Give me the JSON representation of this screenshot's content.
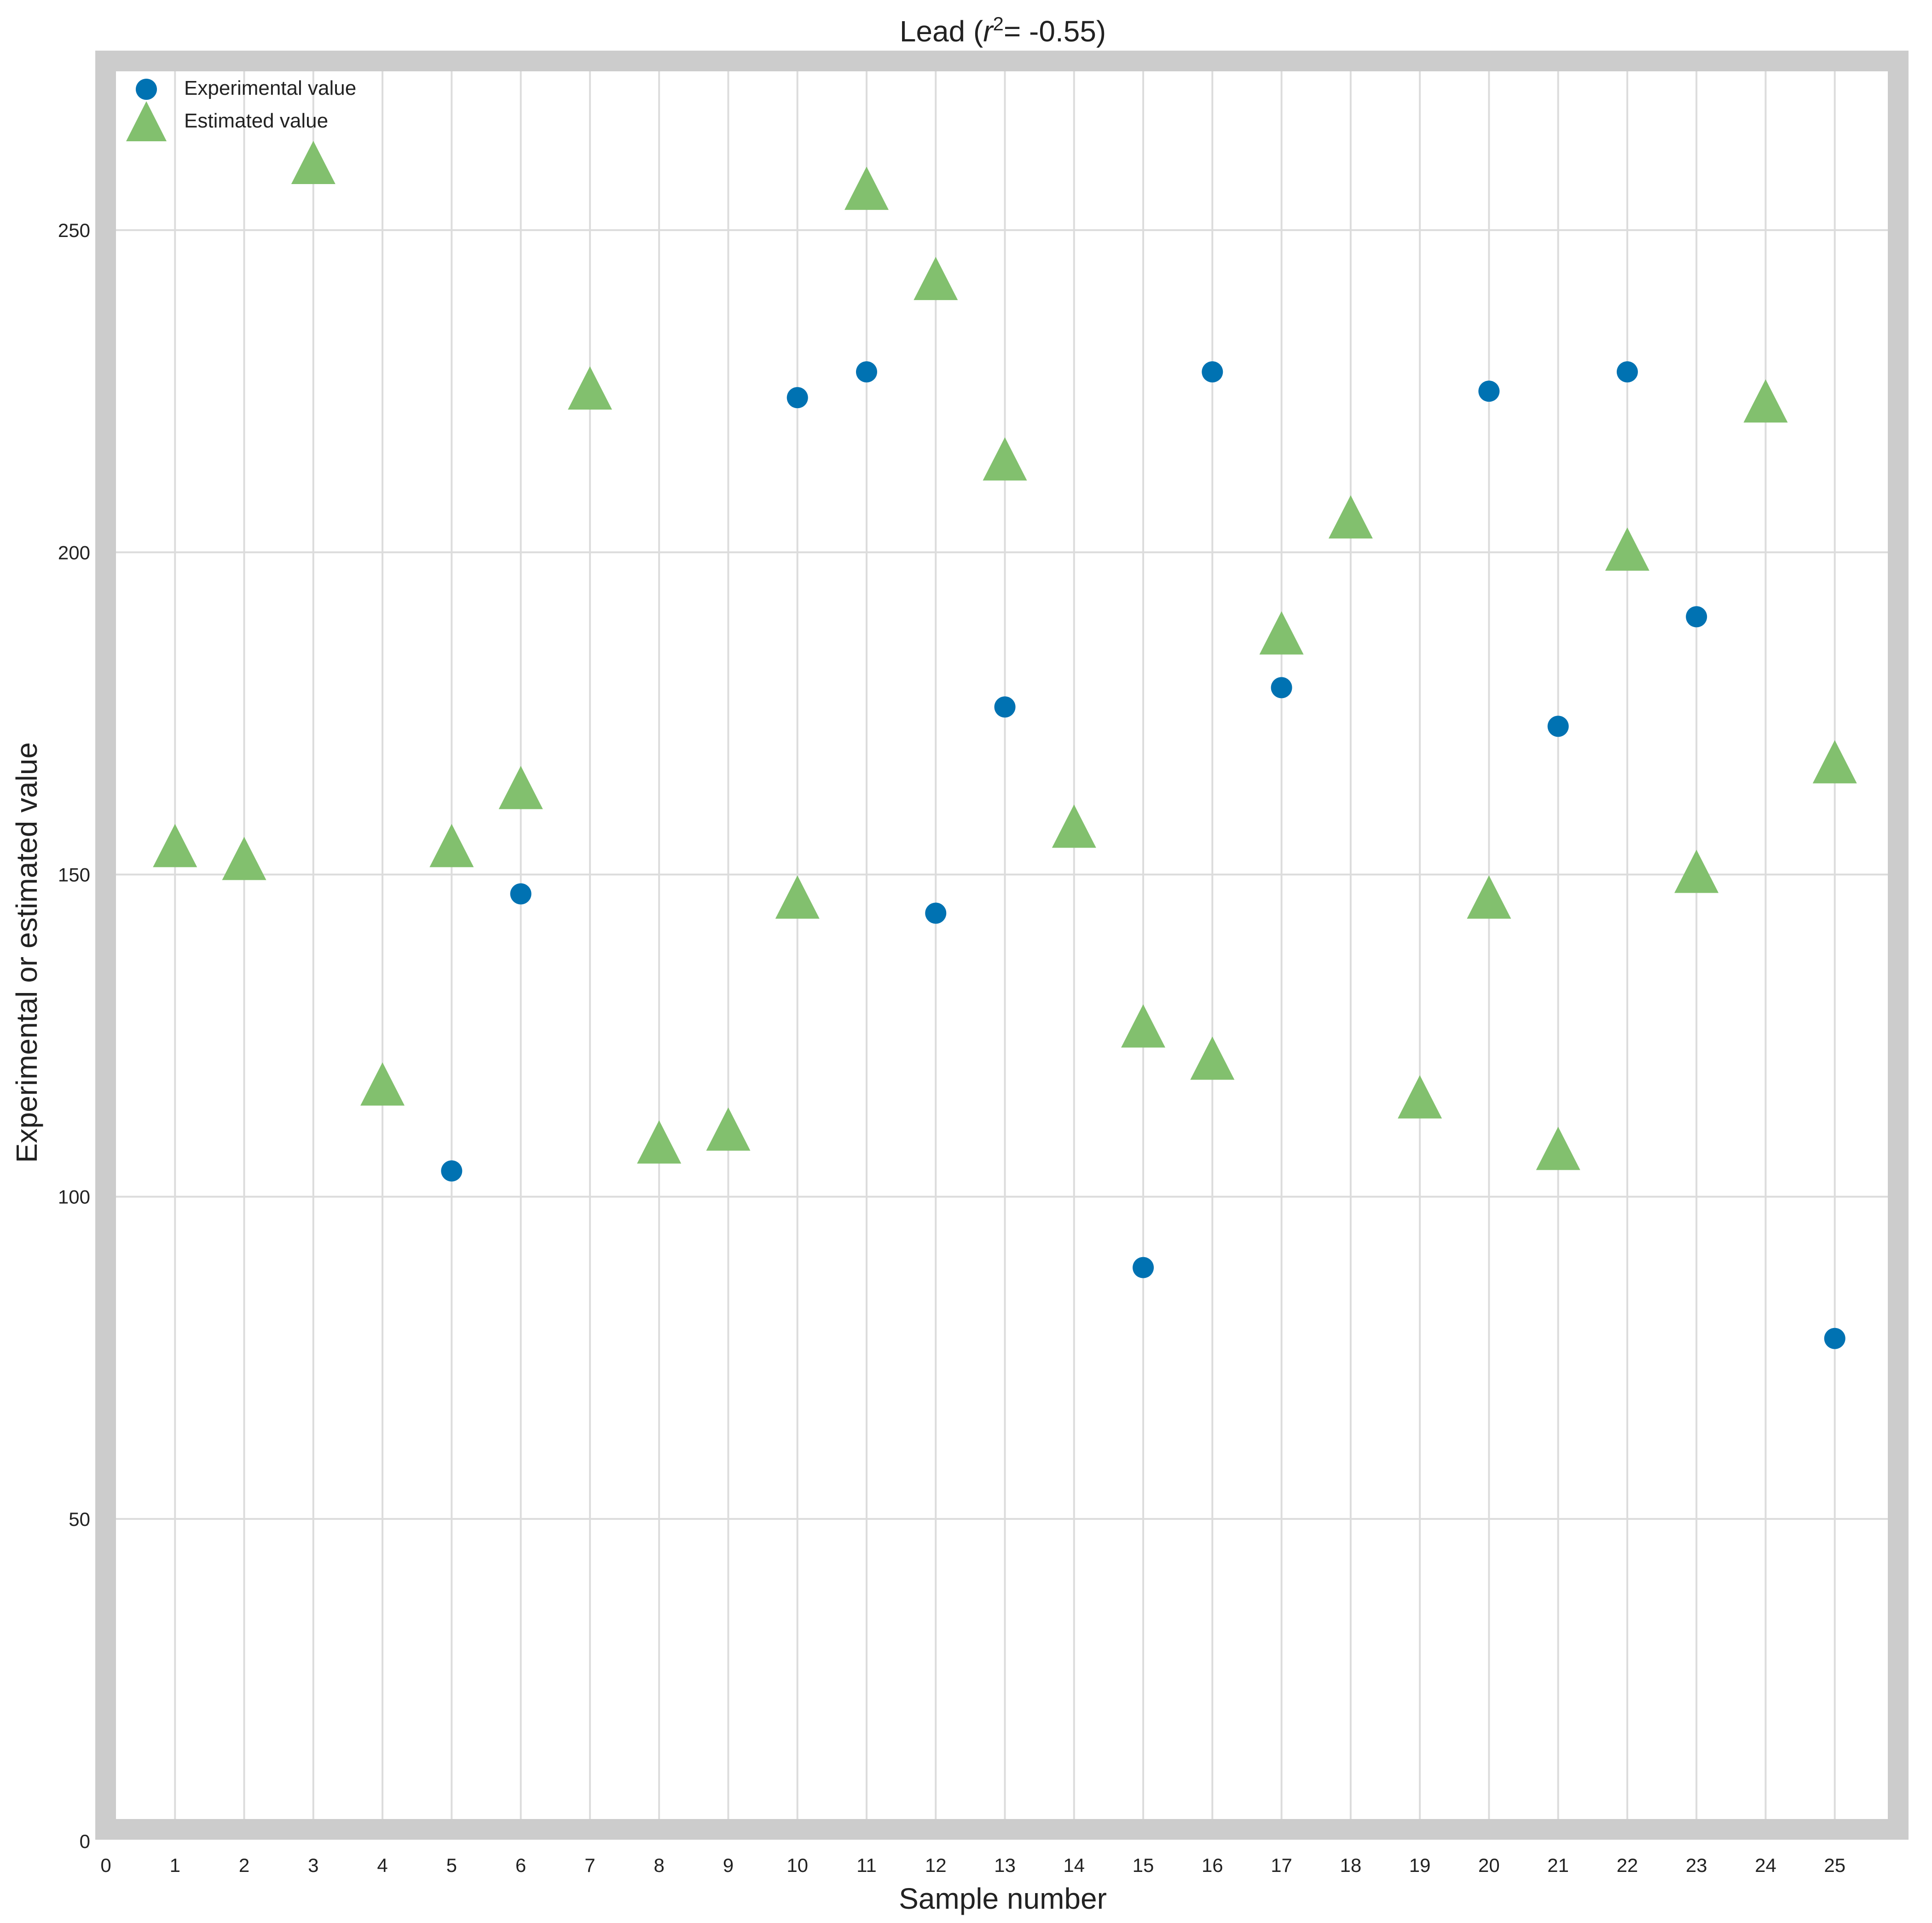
{
  "chart_data": {
    "type": "scatter",
    "title_prefix": "Lead (",
    "title_r": "r",
    "title_sup": "2",
    "title_suffix": "= -0.55)",
    "xlabel": "Sample number",
    "ylabel": "Experimental or estimated value",
    "xlim": [
      0,
      26
    ],
    "ylim": [
      0,
      275
    ],
    "xticks": [
      "0",
      "1",
      "2",
      "3",
      "4",
      "5",
      "6",
      "7",
      "8",
      "9",
      "10",
      "11",
      "12",
      "13",
      "14",
      "15",
      "16",
      "17",
      "18",
      "19",
      "20",
      "21",
      "22",
      "23",
      "24",
      "25"
    ],
    "yticks": [
      "0",
      "50",
      "100",
      "150",
      "200",
      "250"
    ],
    "grid": true,
    "legend_position": "top-left",
    "series": [
      {
        "name": "Experimental value",
        "marker": "circle",
        "color": "#0072B2",
        "points": [
          {
            "x": 5,
            "y": 104
          },
          {
            "x": 6,
            "y": 147
          },
          {
            "x": 10,
            "y": 224
          },
          {
            "x": 11,
            "y": 228
          },
          {
            "x": 12,
            "y": 144
          },
          {
            "x": 13,
            "y": 176
          },
          {
            "x": 15,
            "y": 89
          },
          {
            "x": 16,
            "y": 228
          },
          {
            "x": 17,
            "y": 179
          },
          {
            "x": 20,
            "y": 225
          },
          {
            "x": 21,
            "y": 173
          },
          {
            "x": 22,
            "y": 228
          },
          {
            "x": 23,
            "y": 190
          },
          {
            "x": 25,
            "y": 78
          }
        ]
      },
      {
        "name": "Estimated value",
        "marker": "triangle",
        "color": "#82C06E",
        "points": [
          {
            "x": 1,
            "y": 154
          },
          {
            "x": 2,
            "y": 152
          },
          {
            "x": 3,
            "y": 260
          },
          {
            "x": 4,
            "y": 117
          },
          {
            "x": 5,
            "y": 154
          },
          {
            "x": 6,
            "y": 163
          },
          {
            "x": 7,
            "y": 225
          },
          {
            "x": 8,
            "y": 108
          },
          {
            "x": 9,
            "y": 110
          },
          {
            "x": 10,
            "y": 146
          },
          {
            "x": 11,
            "y": 256
          },
          {
            "x": 12,
            "y": 242
          },
          {
            "x": 13,
            "y": 214
          },
          {
            "x": 14,
            "y": 157
          },
          {
            "x": 15,
            "y": 126
          },
          {
            "x": 16,
            "y": 121
          },
          {
            "x": 17,
            "y": 187
          },
          {
            "x": 18,
            "y": 205
          },
          {
            "x": 19,
            "y": 115
          },
          {
            "x": 20,
            "y": 146
          },
          {
            "x": 21,
            "y": 107
          },
          {
            "x": 22,
            "y": 200
          },
          {
            "x": 23,
            "y": 150
          },
          {
            "x": 24,
            "y": 223
          },
          {
            "x": 25,
            "y": 167
          }
        ]
      }
    ]
  }
}
